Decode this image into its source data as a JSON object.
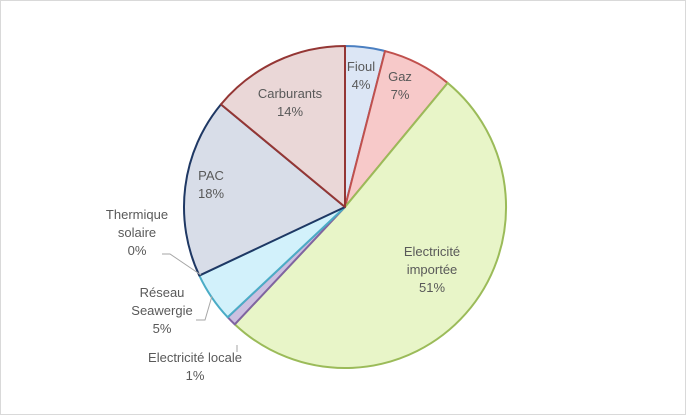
{
  "chart_data": {
    "type": "pie",
    "slices": [
      {
        "name": "Fioul",
        "value": 4,
        "label_lines": [
          "Fioul",
          "4%"
        ],
        "color": "#dce6f5",
        "stroke": "#4a7fc1"
      },
      {
        "name": "Gaz",
        "value": 7,
        "label_lines": [
          "Gaz",
          "7%"
        ],
        "color": "#f7c9c9",
        "stroke": "#c0504d"
      },
      {
        "name": "Electricité importée",
        "value": 51,
        "label_lines": [
          "Electricité",
          "importée",
          "51%"
        ],
        "color": "#e8f5c8",
        "stroke": "#9bbb59"
      },
      {
        "name": "Electricité locale",
        "value": 1,
        "label_lines": [
          "Electricité locale",
          "1%"
        ],
        "color": "#ccc0e0",
        "stroke": "#8064a2"
      },
      {
        "name": "Réseau Seawergie",
        "value": 5,
        "label_lines": [
          "Réseau",
          "Seawergie",
          "5%"
        ],
        "color": "#d2f1fb",
        "stroke": "#4bacc6"
      },
      {
        "name": "Thermique solaire",
        "value": 0,
        "label_lines": [
          "Thermique",
          "solaire",
          "0%"
        ],
        "color": "#e6e6e6",
        "stroke": "#7f7f7f"
      },
      {
        "name": "PAC",
        "value": 18,
        "label_lines": [
          "PAC",
          "18%"
        ],
        "color": "#d8dde8",
        "stroke": "#1f3864"
      },
      {
        "name": "Carburants",
        "value": 14,
        "label_lines": [
          "Carburants",
          "14%"
        ],
        "color": "#ead7d7",
        "stroke": "#943634"
      }
    ]
  }
}
